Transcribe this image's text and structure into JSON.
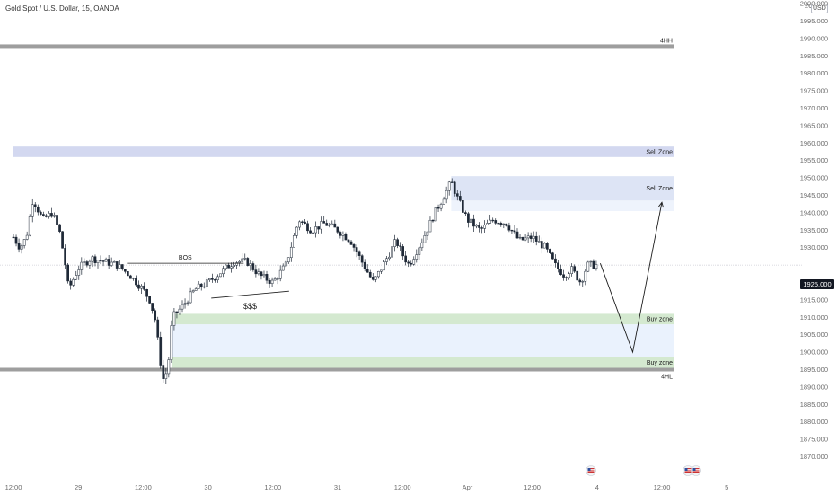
{
  "header": {
    "title": "Gold Spot / U.S. Dollar, 15, OANDA",
    "currency": "USD",
    "top_tick_partial": "2C  )0"
  },
  "chart_data": {
    "type": "candlestick",
    "symbol": "Gold Spot / U.S. Dollar",
    "interval": "15",
    "source": "OANDA",
    "currency": "USD",
    "last_price": "1925.000",
    "ylim": [
      1867,
      2005
    ],
    "y_ticks": [
      "2000.000",
      "1995.000",
      "1990.000",
      "1985.000",
      "1980.000",
      "1975.000",
      "1970.000",
      "1965.000",
      "1960.000",
      "1955.000",
      "1950.000",
      "1945.000",
      "1940.000",
      "1935.000",
      "1930.000",
      "1925.000",
      "1920.000",
      "1915.000",
      "1910.000",
      "1905.000",
      "1900.000",
      "1895.000",
      "1890.000",
      "1885.000",
      "1880.000",
      "1875.000",
      "1870.000"
    ],
    "x_ticks": [
      {
        "label": "12:00",
        "pos": 0
      },
      {
        "label": "29",
        "pos": 1
      },
      {
        "label": "12:00",
        "pos": 2
      },
      {
        "label": "30",
        "pos": 3
      },
      {
        "label": "12:00",
        "pos": 4
      },
      {
        "label": "31",
        "pos": 5
      },
      {
        "label": "12:00",
        "pos": 6
      },
      {
        "label": "Apr",
        "pos": 7
      },
      {
        "label": "12:00",
        "pos": 8
      },
      {
        "label": "4",
        "pos": 9
      },
      {
        "label": "12:00",
        "pos": 10
      },
      {
        "label": "5",
        "pos": 11
      }
    ],
    "price_path": [
      [
        0,
        1933
      ],
      [
        0.1,
        1930
      ],
      [
        0.2,
        1933
      ],
      [
        0.3,
        1944
      ],
      [
        0.45,
        1938
      ],
      [
        0.6,
        1940
      ],
      [
        0.72,
        1934
      ],
      [
        0.8,
        1925
      ],
      [
        0.85,
        1918
      ],
      [
        1.0,
        1924
      ],
      [
        1.2,
        1927
      ],
      [
        1.4,
        1926
      ],
      [
        1.6,
        1925
      ],
      [
        1.8,
        1922
      ],
      [
        2.0,
        1918
      ],
      [
        2.1,
        1915
      ],
      [
        2.18,
        1910
      ],
      [
        2.25,
        1900
      ],
      [
        2.3,
        1892
      ],
      [
        2.38,
        1895
      ],
      [
        2.45,
        1910
      ],
      [
        2.6,
        1913
      ],
      [
        2.8,
        1918
      ],
      [
        3.0,
        1920
      ],
      [
        3.2,
        1923
      ],
      [
        3.4,
        1926
      ],
      [
        3.6,
        1926
      ],
      [
        3.8,
        1922
      ],
      [
        4.0,
        1920
      ],
      [
        4.2,
        1925
      ],
      [
        4.4,
        1938
      ],
      [
        4.6,
        1935
      ],
      [
        4.8,
        1937
      ],
      [
        5.0,
        1935
      ],
      [
        5.2,
        1932
      ],
      [
        5.4,
        1925
      ],
      [
        5.55,
        1920
      ],
      [
        5.7,
        1925
      ],
      [
        5.9,
        1932
      ],
      [
        6.0,
        1928
      ],
      [
        6.1,
        1925
      ],
      [
        6.3,
        1932
      ],
      [
        6.5,
        1940
      ],
      [
        6.7,
        1947
      ],
      [
        6.75,
        1949
      ],
      [
        6.85,
        1944
      ],
      [
        7.0,
        1938
      ],
      [
        7.2,
        1935
      ],
      [
        7.4,
        1938
      ],
      [
        7.6,
        1937
      ],
      [
        7.8,
        1932
      ],
      [
        8.0,
        1933
      ],
      [
        8.2,
        1930
      ],
      [
        8.35,
        1925
      ],
      [
        8.5,
        1922
      ],
      [
        8.6,
        1924
      ],
      [
        8.75,
        1920
      ],
      [
        8.85,
        1925
      ],
      [
        9.0,
        1925
      ]
    ],
    "levels": [
      {
        "label": "4HH",
        "price": 1987.8,
        "color": "#9e9e9e"
      },
      {
        "label": "4HL",
        "price": 1895.0,
        "color": "#9e9e9e"
      }
    ],
    "zones": [
      {
        "label": "Sell Zone",
        "from": 1956.0,
        "to": 1959.0,
        "x_start": 0,
        "color": "#d3d8f0"
      },
      {
        "label": "Sell Zone",
        "from": 1943.5,
        "to": 1950.5,
        "x_start": 6.75,
        "color": "#dde4f5"
      },
      {
        "label": "Buy zone",
        "from": 1908.0,
        "to": 1911.0,
        "x_start": 2.45,
        "color": "#d4e9d0"
      },
      {
        "label": "Buy zone",
        "from": 1895.5,
        "to": 1898.5,
        "x_start": 2.45,
        "color": "#d4e9d0"
      }
    ],
    "annotations": [
      {
        "text": "BOS",
        "kind": "line",
        "x1": 1.75,
        "x2": 3.55,
        "price": 1925.5
      },
      {
        "text": "$$$",
        "kind": "line",
        "x1": 3.05,
        "x2": 4.25,
        "p1": 1915.5,
        "p2": 1917.5
      }
    ],
    "projection": [
      [
        9.05,
        1925.5
      ],
      [
        9.55,
        1900
      ],
      [
        10.0,
        1943
      ]
    ]
  }
}
